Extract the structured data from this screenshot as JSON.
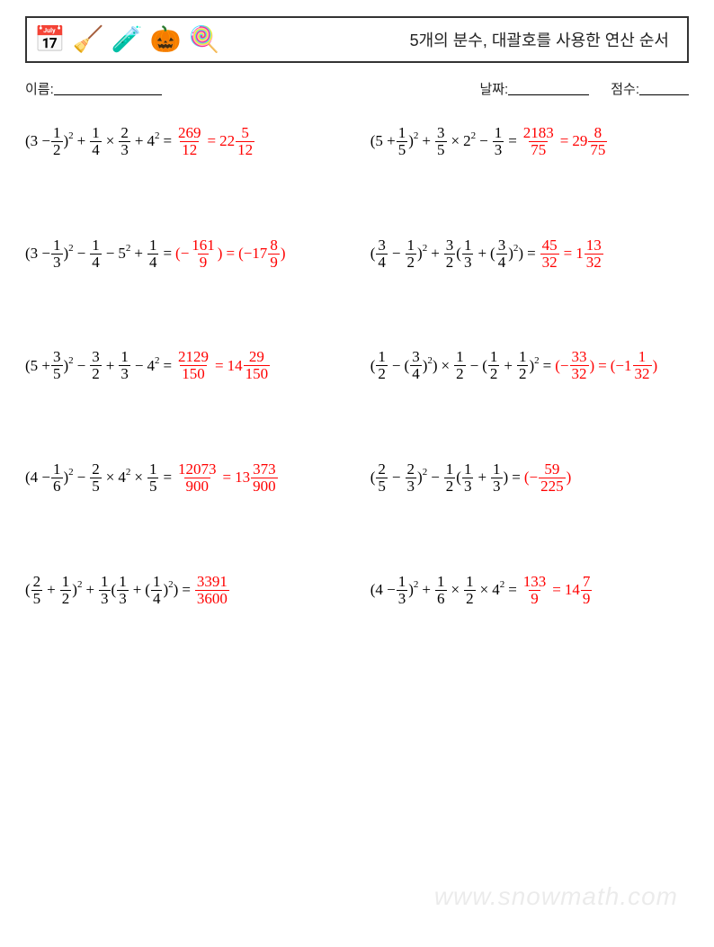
{
  "title": "5개의 분수, 대괄호를 사용한 연산 순서",
  "meta": {
    "name_label": "이름:",
    "date_label": "날짜:",
    "score_label": "점수:",
    "name_line_width": 120,
    "date_line_width": 90,
    "score_line_width": 55
  },
  "icons": [
    "📅",
    "🧹",
    "🧪",
    "🎃",
    "🍭"
  ],
  "colors": {
    "text": "#000000",
    "answer": "#ff0000",
    "border": "#333333",
    "background": "#ffffff",
    "watermark": "rgba(0,0,0,0.08)"
  },
  "watermark": "www.snowmath.com",
  "problems": [
    {
      "left": {
        "q": [
          {
            "t": "txt",
            "v": "(3 −"
          },
          {
            "t": "frac",
            "n": "1",
            "d": "2"
          },
          {
            "t": "txt",
            "v": ")"
          },
          {
            "t": "sup",
            "v": "2"
          },
          {
            "t": "op",
            "v": "+"
          },
          {
            "t": "frac",
            "n": "1",
            "d": "4"
          },
          {
            "t": "op",
            "v": "×"
          },
          {
            "t": "frac",
            "n": "2",
            "d": "3"
          },
          {
            "t": "op",
            "v": "+"
          },
          {
            "t": "txt",
            "v": "4"
          },
          {
            "t": "sup",
            "v": "2"
          },
          {
            "t": "op",
            "v": "="
          }
        ],
        "a": [
          {
            "t": "frac",
            "n": "269",
            "d": "12"
          },
          {
            "t": "op",
            "v": "="
          },
          {
            "t": "txt",
            "v": "22"
          },
          {
            "t": "frac",
            "n": "5",
            "d": "12"
          }
        ]
      },
      "right": {
        "q": [
          {
            "t": "txt",
            "v": "(5 +"
          },
          {
            "t": "frac",
            "n": "1",
            "d": "5"
          },
          {
            "t": "txt",
            "v": ")"
          },
          {
            "t": "sup",
            "v": "2"
          },
          {
            "t": "op",
            "v": "+"
          },
          {
            "t": "frac",
            "n": "3",
            "d": "5"
          },
          {
            "t": "op",
            "v": "×"
          },
          {
            "t": "txt",
            "v": "2"
          },
          {
            "t": "sup",
            "v": "2"
          },
          {
            "t": "op",
            "v": "−"
          },
          {
            "t": "frac",
            "n": "1",
            "d": "3"
          },
          {
            "t": "op",
            "v": "="
          }
        ],
        "a": [
          {
            "t": "frac",
            "n": "2183",
            "d": "75"
          },
          {
            "t": "op",
            "v": "="
          },
          {
            "t": "txt",
            "v": "29"
          },
          {
            "t": "frac",
            "n": "8",
            "d": "75"
          }
        ]
      }
    },
    {
      "left": {
        "q": [
          {
            "t": "txt",
            "v": "(3 −"
          },
          {
            "t": "frac",
            "n": "1",
            "d": "3"
          },
          {
            "t": "txt",
            "v": ")"
          },
          {
            "t": "sup",
            "v": "2"
          },
          {
            "t": "op",
            "v": "−"
          },
          {
            "t": "frac",
            "n": "1",
            "d": "4"
          },
          {
            "t": "op",
            "v": "−"
          },
          {
            "t": "txt",
            "v": "5"
          },
          {
            "t": "sup",
            "v": "2"
          },
          {
            "t": "op",
            "v": "+"
          },
          {
            "t": "frac",
            "n": "1",
            "d": "4"
          },
          {
            "t": "op",
            "v": "="
          }
        ],
        "a": [
          {
            "t": "txt",
            "v": "(−"
          },
          {
            "t": "frac",
            "n": "161",
            "d": "9"
          },
          {
            "t": "txt",
            "v": ")"
          },
          {
            "t": "op",
            "v": "="
          },
          {
            "t": "txt",
            "v": "(−17"
          },
          {
            "t": "frac",
            "n": "8",
            "d": "9"
          },
          {
            "t": "txt",
            "v": ")"
          }
        ]
      },
      "right": {
        "q": [
          {
            "t": "txt",
            "v": "("
          },
          {
            "t": "frac",
            "n": "3",
            "d": "4"
          },
          {
            "t": "op",
            "v": "−"
          },
          {
            "t": "frac",
            "n": "1",
            "d": "2"
          },
          {
            "t": "txt",
            "v": ")"
          },
          {
            "t": "sup",
            "v": "2"
          },
          {
            "t": "op",
            "v": "+"
          },
          {
            "t": "frac",
            "n": "3",
            "d": "2"
          },
          {
            "t": "txt",
            "v": "("
          },
          {
            "t": "frac",
            "n": "1",
            "d": "3"
          },
          {
            "t": "op",
            "v": "+"
          },
          {
            "t": "txt",
            "v": "("
          },
          {
            "t": "frac",
            "n": "3",
            "d": "4"
          },
          {
            "t": "txt",
            "v": ")"
          },
          {
            "t": "sup",
            "v": "2"
          },
          {
            "t": "txt",
            "v": ")"
          },
          {
            "t": "op",
            "v": "="
          }
        ],
        "a": [
          {
            "t": "frac",
            "n": "45",
            "d": "32"
          },
          {
            "t": "op",
            "v": "="
          },
          {
            "t": "txt",
            "v": "1"
          },
          {
            "t": "frac",
            "n": "13",
            "d": "32"
          }
        ]
      }
    },
    {
      "left": {
        "q": [
          {
            "t": "txt",
            "v": "(5 +"
          },
          {
            "t": "frac",
            "n": "3",
            "d": "5"
          },
          {
            "t": "txt",
            "v": ")"
          },
          {
            "t": "sup",
            "v": "2"
          },
          {
            "t": "op",
            "v": "−"
          },
          {
            "t": "frac",
            "n": "3",
            "d": "2"
          },
          {
            "t": "op",
            "v": "+"
          },
          {
            "t": "frac",
            "n": "1",
            "d": "3"
          },
          {
            "t": "op",
            "v": "−"
          },
          {
            "t": "txt",
            "v": "4"
          },
          {
            "t": "sup",
            "v": "2"
          },
          {
            "t": "op",
            "v": "="
          }
        ],
        "a": [
          {
            "t": "frac",
            "n": "2129",
            "d": "150"
          },
          {
            "t": "op",
            "v": "="
          },
          {
            "t": "txt",
            "v": "14"
          },
          {
            "t": "frac",
            "n": "29",
            "d": "150"
          }
        ]
      },
      "right": {
        "q": [
          {
            "t": "txt",
            "v": "("
          },
          {
            "t": "frac",
            "n": "1",
            "d": "2"
          },
          {
            "t": "op",
            "v": "−"
          },
          {
            "t": "txt",
            "v": "("
          },
          {
            "t": "frac",
            "n": "3",
            "d": "4"
          },
          {
            "t": "txt",
            "v": ")"
          },
          {
            "t": "sup",
            "v": "2"
          },
          {
            "t": "txt",
            "v": ")"
          },
          {
            "t": "op",
            "v": "×"
          },
          {
            "t": "frac",
            "n": "1",
            "d": "2"
          },
          {
            "t": "op",
            "v": "−"
          },
          {
            "t": "txt",
            "v": "("
          },
          {
            "t": "frac",
            "n": "1",
            "d": "2"
          },
          {
            "t": "op",
            "v": "+"
          },
          {
            "t": "frac",
            "n": "1",
            "d": "2"
          },
          {
            "t": "txt",
            "v": ")"
          },
          {
            "t": "sup",
            "v": "2"
          },
          {
            "t": "op",
            "v": "="
          }
        ],
        "a": [
          {
            "t": "txt",
            "v": "(−"
          },
          {
            "t": "frac",
            "n": "33",
            "d": "32"
          },
          {
            "t": "txt",
            "v": ")"
          },
          {
            "t": "op",
            "v": "="
          },
          {
            "t": "txt",
            "v": "(−1"
          },
          {
            "t": "frac",
            "n": "1",
            "d": "32"
          },
          {
            "t": "txt",
            "v": ")"
          }
        ]
      }
    },
    {
      "left": {
        "q": [
          {
            "t": "txt",
            "v": "(4 −"
          },
          {
            "t": "frac",
            "n": "1",
            "d": "6"
          },
          {
            "t": "txt",
            "v": ")"
          },
          {
            "t": "sup",
            "v": "2"
          },
          {
            "t": "op",
            "v": "−"
          },
          {
            "t": "frac",
            "n": "2",
            "d": "5"
          },
          {
            "t": "op",
            "v": "×"
          },
          {
            "t": "txt",
            "v": "4"
          },
          {
            "t": "sup",
            "v": "2"
          },
          {
            "t": "op",
            "v": "×"
          },
          {
            "t": "frac",
            "n": "1",
            "d": "5"
          },
          {
            "t": "op",
            "v": "="
          }
        ],
        "a": [
          {
            "t": "frac",
            "n": "12073",
            "d": "900"
          },
          {
            "t": "op",
            "v": "="
          },
          {
            "t": "txt",
            "v": "13"
          },
          {
            "t": "frac",
            "n": "373",
            "d": "900"
          }
        ]
      },
      "right": {
        "q": [
          {
            "t": "txt",
            "v": "("
          },
          {
            "t": "frac",
            "n": "2",
            "d": "5"
          },
          {
            "t": "op",
            "v": "−"
          },
          {
            "t": "frac",
            "n": "2",
            "d": "3"
          },
          {
            "t": "txt",
            "v": ")"
          },
          {
            "t": "sup",
            "v": "2"
          },
          {
            "t": "op",
            "v": "−"
          },
          {
            "t": "frac",
            "n": "1",
            "d": "2"
          },
          {
            "t": "txt",
            "v": "("
          },
          {
            "t": "frac",
            "n": "1",
            "d": "3"
          },
          {
            "t": "op",
            "v": "+"
          },
          {
            "t": "frac",
            "n": "1",
            "d": "3"
          },
          {
            "t": "txt",
            "v": ")"
          },
          {
            "t": "op",
            "v": "="
          }
        ],
        "a": [
          {
            "t": "txt",
            "v": "(−"
          },
          {
            "t": "frac",
            "n": "59",
            "d": "225"
          },
          {
            "t": "txt",
            "v": ")"
          }
        ]
      }
    },
    {
      "left": {
        "q": [
          {
            "t": "txt",
            "v": "("
          },
          {
            "t": "frac",
            "n": "2",
            "d": "5"
          },
          {
            "t": "op",
            "v": "+"
          },
          {
            "t": "frac",
            "n": "1",
            "d": "2"
          },
          {
            "t": "txt",
            "v": ")"
          },
          {
            "t": "sup",
            "v": "2"
          },
          {
            "t": "op",
            "v": "+"
          },
          {
            "t": "frac",
            "n": "1",
            "d": "3"
          },
          {
            "t": "txt",
            "v": "("
          },
          {
            "t": "frac",
            "n": "1",
            "d": "3"
          },
          {
            "t": "op",
            "v": "+"
          },
          {
            "t": "txt",
            "v": "("
          },
          {
            "t": "frac",
            "n": "1",
            "d": "4"
          },
          {
            "t": "txt",
            "v": ")"
          },
          {
            "t": "sup",
            "v": "2"
          },
          {
            "t": "txt",
            "v": ")"
          },
          {
            "t": "op",
            "v": "="
          }
        ],
        "a": [
          {
            "t": "frac",
            "n": "3391",
            "d": "3600"
          }
        ]
      },
      "right": {
        "q": [
          {
            "t": "txt",
            "v": "(4 −"
          },
          {
            "t": "frac",
            "n": "1",
            "d": "3"
          },
          {
            "t": "txt",
            "v": ")"
          },
          {
            "t": "sup",
            "v": "2"
          },
          {
            "t": "op",
            "v": "+"
          },
          {
            "t": "frac",
            "n": "1",
            "d": "6"
          },
          {
            "t": "op",
            "v": "×"
          },
          {
            "t": "frac",
            "n": "1",
            "d": "2"
          },
          {
            "t": "op",
            "v": "×"
          },
          {
            "t": "txt",
            "v": "4"
          },
          {
            "t": "sup",
            "v": "2"
          },
          {
            "t": "op",
            "v": "="
          }
        ],
        "a": [
          {
            "t": "frac",
            "n": "133",
            "d": "9"
          },
          {
            "t": "op",
            "v": "="
          },
          {
            "t": "txt",
            "v": "14"
          },
          {
            "t": "frac",
            "n": "7",
            "d": "9"
          }
        ]
      }
    }
  ]
}
